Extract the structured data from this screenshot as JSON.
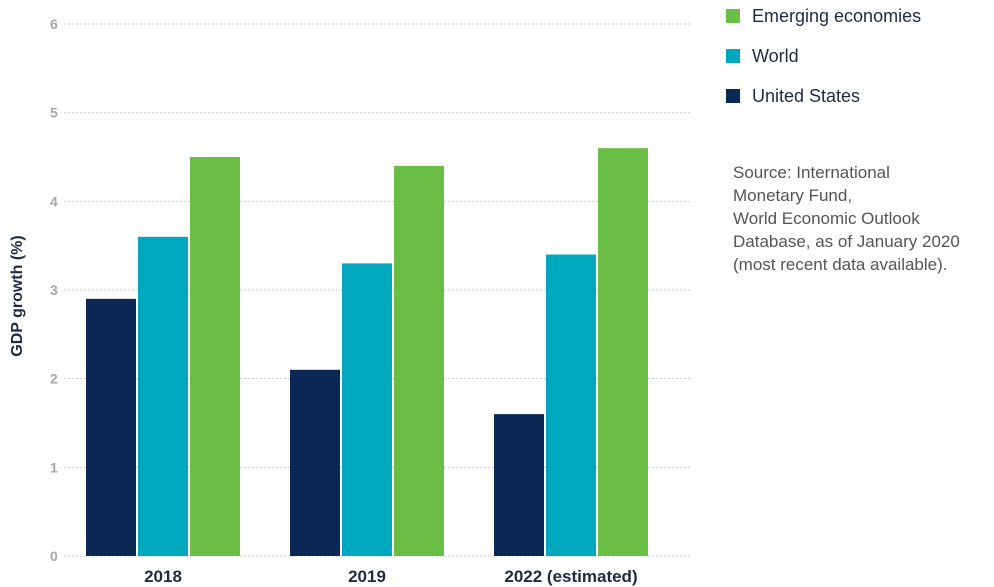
{
  "chart_data": {
    "type": "bar",
    "categories": [
      "2018",
      "2019",
      "2022 (estimated)"
    ],
    "series": [
      {
        "name": "United States",
        "color": "#0b2754",
        "values": [
          2.9,
          2.1,
          1.6
        ]
      },
      {
        "name": "World",
        "color": "#00a8bf",
        "values": [
          3.6,
          3.3,
          3.4
        ]
      },
      {
        "name": "Emerging economies",
        "color": "#6abe45",
        "values": [
          4.5,
          4.4,
          4.6
        ]
      }
    ],
    "ylabel": "GDP growth (%)",
    "xlabel": "",
    "ylim": [
      0,
      6
    ],
    "yticks": [
      0,
      1,
      2,
      3,
      4,
      5,
      6
    ],
    "grid": true,
    "legend": {
      "placement": "top-right",
      "order": [
        "Emerging economies",
        "World",
        "United States"
      ]
    }
  },
  "source_note": "Source: International\nMonetary Fund,\nWorld Economic Outlook\nDatabase, as of January 2020\n(most recent data available)."
}
